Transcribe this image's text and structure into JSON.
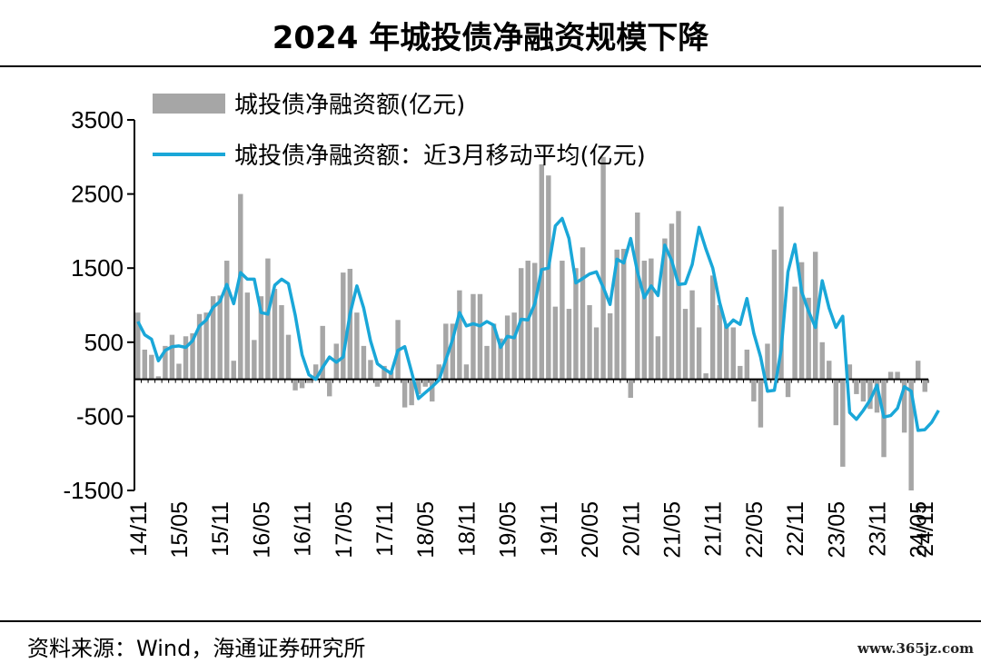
{
  "title": "2024 年城投债净融资规模下降",
  "source": "资料来源：Wind，海通证券研究所",
  "watermark": "www.365jz.com",
  "chart_data": {
    "type": "bar+line",
    "ylim": [
      -1500,
      3500
    ],
    "yticks": [
      3500,
      2500,
      1500,
      500,
      -500,
      -1500
    ],
    "xtick_labels": [
      "14/11",
      "15/05",
      "15/11",
      "16/05",
      "16/11",
      "17/05",
      "17/11",
      "18/05",
      "18/11",
      "19/05",
      "19/11",
      "20/05",
      "20/11",
      "21/05",
      "21/11",
      "22/05",
      "22/11",
      "23/05",
      "23/11",
      "24/05",
      "24/11"
    ],
    "xtick_every": 6,
    "legend": [
      {
        "label": "城投债净融资额(亿元)",
        "type": "bar",
        "color": "#a6a6a6"
      },
      {
        "label": "城投债净融资额：近3月移动平均(亿元)",
        "type": "line",
        "color": "#1aa7d8"
      }
    ],
    "series": [
      {
        "name": "城投债净融资额(亿元)",
        "type": "bar",
        "color": "#a6a6a6",
        "values": [
          900,
          400,
          330,
          40,
          450,
          600,
          210,
          580,
          620,
          880,
          900,
          1120,
          1130,
          1600,
          250,
          2500,
          1170,
          530,
          1120,
          1630,
          1220,
          1000,
          600,
          -150,
          -120,
          -50,
          200,
          720,
          -230,
          480,
          1440,
          1490,
          900,
          450,
          260,
          -100,
          180,
          100,
          800,
          -380,
          -350,
          -200,
          -100,
          -300,
          200,
          750,
          750,
          1200,
          200,
          1150,
          1150,
          450,
          750,
          550,
          860,
          900,
          1500,
          1600,
          1570,
          2900,
          2750,
          980,
          1600,
          950,
          1500,
          1780,
          1000,
          700,
          3000,
          890,
          1750,
          1760,
          -250,
          2250,
          1600,
          1630,
          580,
          1900,
          2100,
          2270,
          950,
          1200,
          700,
          80,
          1400,
          1000,
          750,
          700,
          180,
          400,
          -300,
          -650,
          480,
          1750,
          2330,
          -240,
          1250,
          1580,
          1100,
          1720,
          500,
          250,
          -620,
          -1180,
          200,
          -200,
          -300,
          -400,
          -450,
          -1050,
          100,
          100,
          -720,
          -1500,
          250,
          -170
        ]
      },
      {
        "name": "城投债净融资额：近3月移动平均(亿元)",
        "type": "line",
        "color": "#1aa7d8",
        "values": [
          780,
          600,
          540,
          250,
          390,
          440,
          450,
          430,
          520,
          720,
          800,
          970,
          1050,
          1280,
          1020,
          1440,
          1350,
          1350,
          900,
          880,
          1270,
          1350,
          1290,
          860,
          330,
          60,
          0,
          160,
          300,
          230,
          300,
          880,
          1260,
          960,
          520,
          210,
          140,
          80,
          390,
          440,
          100,
          -260,
          -180,
          -100,
          -10,
          260,
          540,
          900,
          720,
          750,
          720,
          780,
          730,
          430,
          580,
          560,
          810,
          800,
          1020,
          1480,
          1500,
          2070,
          2170,
          1900,
          1300,
          1360,
          1420,
          1450,
          1240,
          1010,
          1620,
          1570,
          1900,
          1450,
          1100,
          1260,
          1130,
          1810,
          1600,
          1280,
          1290,
          1550,
          2050,
          1760,
          1500,
          1040,
          700,
          800,
          740,
          1090,
          620,
          300,
          -160,
          -150,
          400,
          1450,
          1820,
          1180,
          920,
          700,
          1330,
          960,
          700,
          850,
          -450,
          -540,
          -420,
          -280,
          -80,
          -510,
          -490,
          -390,
          -100,
          -160,
          -690,
          -680,
          -580,
          -420
        ]
      }
    ]
  }
}
